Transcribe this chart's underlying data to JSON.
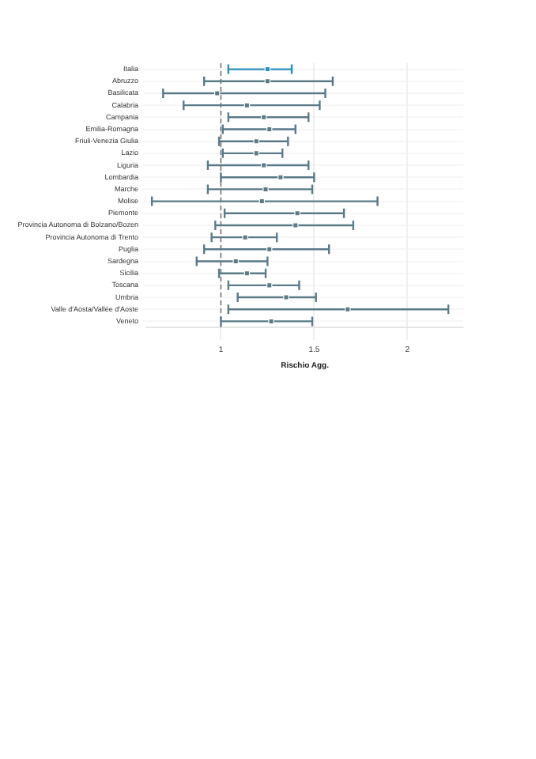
{
  "chart_data": {
    "type": "scatter",
    "orientation": "horizontal",
    "xlabel": "Rischio Agg.",
    "categories": [
      "Italia",
      "Abruzzo",
      "Basilicata",
      "Calabria",
      "Campania",
      "Emilia-Romagna",
      "Friuli-Venezia Giulia",
      "Lazio",
      "Liguria",
      "Lombardia",
      "Marche",
      "Molise",
      "Piemonte",
      "Provincia Autonoma di Bolzano/Bozen",
      "Provincia Autonoma di Trento",
      "Puglia",
      "Sardegna",
      "Sicilia",
      "Toscana",
      "Umbria",
      "Valle d'Aosta/Vallée d'Aoste",
      "Veneto"
    ],
    "values": [
      1.25,
      1.25,
      0.98,
      1.14,
      1.23,
      1.26,
      1.19,
      1.19,
      1.23,
      1.32,
      1.24,
      1.22,
      1.41,
      1.4,
      1.13,
      1.26,
      1.08,
      1.14,
      1.26,
      1.35,
      1.68,
      1.27
    ],
    "errors": [
      [
        1.04,
        1.38
      ],
      [
        0.91,
        1.6
      ],
      [
        0.69,
        1.56
      ],
      [
        0.8,
        1.53
      ],
      [
        1.04,
        1.47
      ],
      [
        1.01,
        1.4
      ],
      [
        0.99,
        1.36
      ],
      [
        1.01,
        1.33
      ],
      [
        0.93,
        1.47
      ],
      [
        1.0,
        1.5
      ],
      [
        0.93,
        1.49
      ],
      [
        0.63,
        1.84
      ],
      [
        1.02,
        1.66
      ],
      [
        0.97,
        1.71
      ],
      [
        0.95,
        1.3
      ],
      [
        0.91,
        1.58
      ],
      [
        0.87,
        1.25
      ],
      [
        0.99,
        1.24
      ],
      [
        1.04,
        1.42
      ],
      [
        1.09,
        1.51
      ],
      [
        1.04,
        2.22
      ],
      [
        1.0,
        1.49
      ]
    ],
    "colors": [
      "#2a8fbd",
      "#5a7a88",
      "#5a7a88",
      "#5a7a88",
      "#5a7a88",
      "#5a7a88",
      "#5a7a88",
      "#5a7a88",
      "#5a7a88",
      "#5a7a88",
      "#5a7a88",
      "#5a7a88",
      "#5a7a88",
      "#5a7a88",
      "#5a7a88",
      "#5a7a88",
      "#5a7a88",
      "#5a7a88",
      "#5a7a88",
      "#5a7a88",
      "#5a7a88",
      "#5a7a88"
    ],
    "xlim": [
      0.6,
      2.3
    ],
    "xticks": [
      1,
      1.5,
      2
    ],
    "ref_lines": [
      {
        "axis": "x",
        "value": 1,
        "line_style": "dashed",
        "color": "#777777"
      }
    ],
    "grid": true,
    "marker": "square",
    "legend": false
  }
}
